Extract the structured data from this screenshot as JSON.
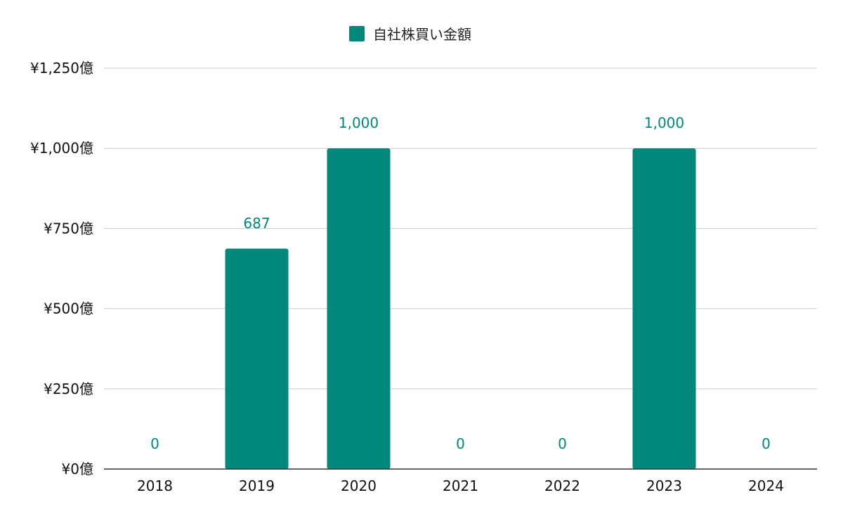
{
  "chart_data": {
    "type": "bar",
    "categories": [
      "2018",
      "2019",
      "2020",
      "2021",
      "2022",
      "2023",
      "2024"
    ],
    "series": [
      {
        "name": "自社株買い金額",
        "values": [
          0,
          687,
          1000,
          0,
          0,
          1000,
          0
        ],
        "data_labels": [
          "0",
          "687",
          "1,000",
          "0",
          "0",
          "1,000",
          "0"
        ],
        "color": "#00897B"
      }
    ],
    "y_ticks": [
      0,
      250,
      500,
      750,
      1000,
      1250
    ],
    "y_tick_labels": [
      "¥0億",
      "¥250億",
      "¥500億",
      "¥750億",
      "¥1,000億",
      "¥1,250億"
    ],
    "ylim": [
      0,
      1250
    ],
    "grid": true,
    "legend_position": "top-center"
  },
  "colors": {
    "gridline": "#cccccc",
    "baseline": "#333333"
  }
}
